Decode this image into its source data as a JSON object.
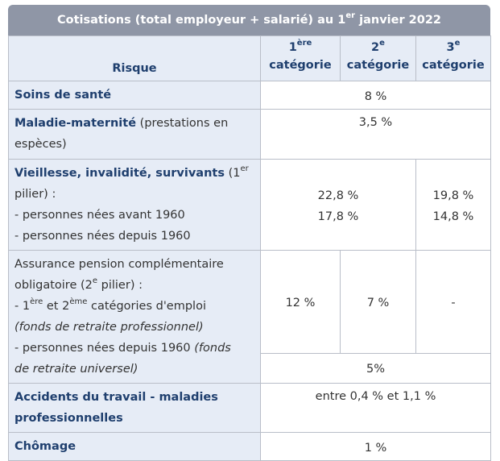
{
  "title": {
    "text": "Cotisations (total employeur + salarié) au 1",
    "sup": "er",
    "tail": " janvier 2022"
  },
  "header": {
    "risque": "Risque",
    "cat1": {
      "num": "1",
      "sup": "ère",
      "word": "catégorie"
    },
    "cat2": {
      "num": "2",
      "sup": "e",
      "word": "catégorie"
    },
    "cat3": {
      "num": "3",
      "sup": "e",
      "word": "catégorie"
    }
  },
  "rows": {
    "soins": {
      "label": "Soins de santé",
      "value": "8 %"
    },
    "maladie": {
      "label_bold": "Maladie-maternité",
      "label_rest": " (prestations en espèces)",
      "value": "3,5 %"
    },
    "vieillesse": {
      "label_bold": "Vieillesse, invalidité, survivants",
      "label_rest_a": " (1",
      "label_sup": "er",
      "label_rest_b": " pilier) :",
      "line1": "- personnes nées avant 1960",
      "line2": "- personnes nées depuis 1960",
      "v12_a": "22,8 %",
      "v12_b": "17,8 %",
      "v3_a": "19,8 %",
      "v3_b": "14,8 %"
    },
    "complementaire": {
      "line1": "Assurance pension complémentaire",
      "line2_a": "obligatoire (2",
      "line2_sup": "e",
      "line2_b": " pilier) :",
      "line3_a": "- 1",
      "line3_sup1": "ère",
      "line3_b": " et 2",
      "line3_sup2": "ème",
      "line3_c": " catégories d'emploi",
      "line4": "(fonds de retraite professionnel)",
      "line5_a": "- personnes nées depuis 1960 ",
      "line5_b": "(fonds",
      "line6": "de retraite universel)",
      "v1": "12 %",
      "v2": "7 %",
      "v3": "-",
      "v_univ": "5%"
    },
    "accidents": {
      "label": "Accidents du travail - maladies professionnelles",
      "value": "entre 0,4 % et 1,1 %"
    },
    "chomage": {
      "label": "Chômage",
      "value": "1 %"
    }
  },
  "colors": {
    "caption_bg": "#8f96a6",
    "header_bg": "#e6ecf6",
    "label_text": "#1f3f6e",
    "border": "#b9bec8"
  }
}
